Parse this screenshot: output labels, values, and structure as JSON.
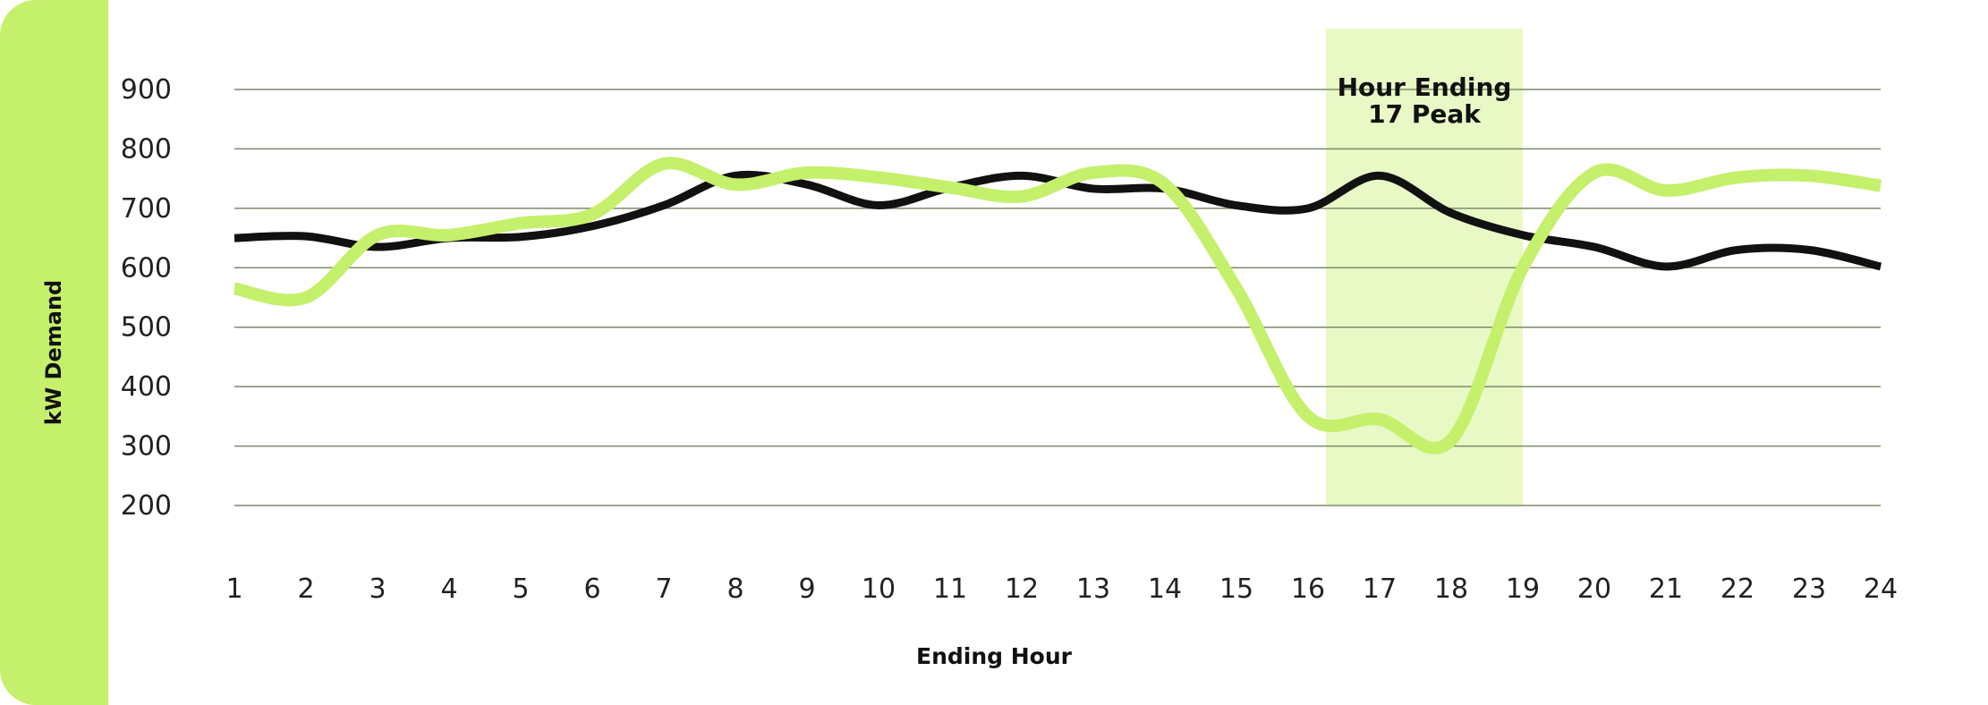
{
  "colors": {
    "accent": "#c5f06b",
    "highlight": "#e8f9c6",
    "baseline": "#111111",
    "grid": "#7d8a6a"
  },
  "chart_data": {
    "type": "line",
    "xlabel": "Ending Hour",
    "ylabel": "kW Demand",
    "x": [
      1,
      2,
      3,
      4,
      5,
      6,
      7,
      8,
      9,
      10,
      11,
      12,
      13,
      14,
      15,
      16,
      17,
      18,
      19,
      20,
      21,
      22,
      23,
      24
    ],
    "ylim": [
      200,
      900
    ],
    "yticks": [
      200,
      300,
      400,
      500,
      600,
      700,
      800,
      900
    ],
    "grid": true,
    "highlight": {
      "x_start": 16.25,
      "x_end": 19,
      "label_lines": [
        "Hour Ending",
        "17 Peak"
      ]
    },
    "series": [
      {
        "color": "#111111",
        "values": [
          650,
          653,
          635,
          650,
          652,
          670,
          705,
          755,
          740,
          705,
          735,
          755,
          733,
          733,
          705,
          700,
          755,
          692,
          655,
          635,
          602,
          630,
          630,
          602
        ]
      },
      {
        "color": "#c5f06b",
        "values": [
          565,
          550,
          655,
          655,
          675,
          690,
          775,
          740,
          760,
          752,
          735,
          720,
          760,
          740,
          565,
          350,
          345,
          310,
          600,
          760,
          730,
          752,
          755,
          738
        ]
      }
    ]
  }
}
